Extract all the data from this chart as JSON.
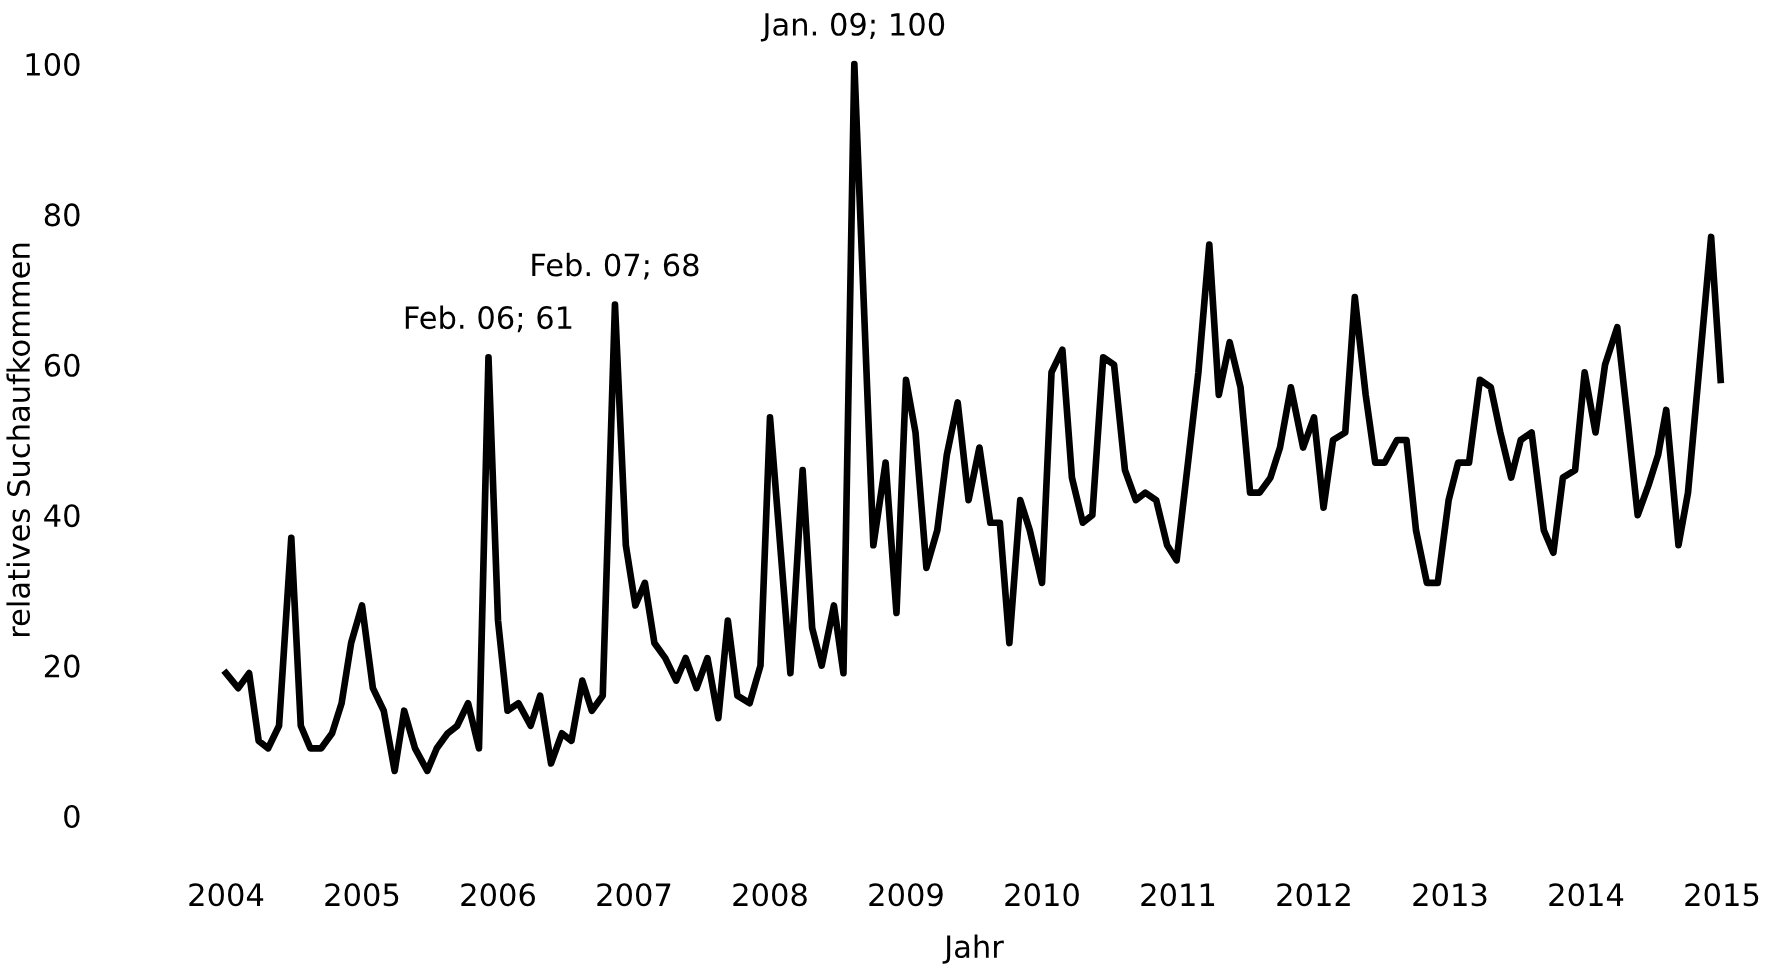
{
  "chart_data": {
    "type": "line",
    "xlabel": "Jahr",
    "ylabel": "relatives Suchaufkommen",
    "xlim": [
      2004,
      2015
    ],
    "xticks": [
      2004,
      2005,
      2006,
      2007,
      2008,
      2009,
      2010,
      2011,
      2012,
      2013,
      2014,
      2015
    ],
    "ylim": [
      0,
      100
    ],
    "yticks": [
      0,
      20,
      40,
      60,
      80,
      100
    ],
    "series": [
      {
        "color": "#000000",
        "x": [
          2004.0,
          2004.09,
          2004.17,
          2004.24,
          2004.31,
          2004.39,
          2004.48,
          2004.55,
          2004.62,
          2004.7,
          2004.78,
          2004.85,
          2004.92,
          2005.0,
          2005.08,
          2005.16,
          2005.24,
          2005.31,
          2005.39,
          2005.48,
          2005.55,
          2005.63,
          2005.7,
          2005.78,
          2005.86,
          2005.93,
          2006.0,
          2006.07,
          2006.15,
          2006.24,
          2006.31,
          2006.39,
          2006.47,
          2006.54,
          2006.62,
          2006.69,
          2006.77,
          2006.86,
          2006.94,
          2007.01,
          2007.08,
          2007.15,
          2007.23,
          2007.31,
          2007.38,
          2007.46,
          2007.54,
          2007.62,
          2007.69,
          2007.76,
          2007.85,
          2007.93,
          2008.0,
          2008.15,
          2008.24,
          2008.31,
          2008.38,
          2008.47,
          2008.54,
          2008.62,
          2008.76,
          2008.85,
          2008.93,
          2009.0,
          2009.07,
          2009.15,
          2009.23,
          2009.3,
          2009.38,
          2009.46,
          2009.54,
          2009.62,
          2009.69,
          2009.76,
          2009.84,
          2009.91,
          2010.0,
          2010.07,
          2010.15,
          2010.22,
          2010.3,
          2010.37,
          2010.45,
          2010.53,
          2010.61,
          2010.69,
          2010.76,
          2010.84,
          2010.92,
          2010.99,
          2011.08,
          2011.15,
          2011.23,
          2011.3,
          2011.38,
          2011.46,
          2011.53,
          2011.6,
          2011.68,
          2011.75,
          2011.83,
          2011.92,
          2012.0,
          2012.07,
          2012.14,
          2012.23,
          2012.3,
          2012.38,
          2012.45,
          2012.52,
          2012.61,
          2012.68,
          2012.75,
          2012.83,
          2012.91,
          2012.99,
          2013.06,
          2013.14,
          2013.22,
          2013.3,
          2013.37,
          2013.45,
          2013.52,
          2013.6,
          2013.69,
          2013.76,
          2013.83,
          2013.92,
          2013.99,
          2014.07,
          2014.14,
          2014.23,
          2014.31,
          2014.38,
          2014.46,
          2014.53,
          2014.59,
          2014.68,
          2014.75,
          2014.92,
          2014.99
        ],
        "values": [
          19,
          17,
          19,
          10,
          9,
          12,
          37,
          12,
          9,
          9,
          11,
          15,
          23,
          28,
          17,
          14,
          6,
          14,
          9,
          6,
          9,
          11,
          12,
          15,
          9,
          61,
          26,
          14,
          15,
          12,
          16,
          7,
          11,
          10,
          18,
          14,
          16,
          68,
          36,
          28,
          31,
          23,
          21,
          18,
          21,
          17,
          21,
          13,
          26,
          16,
          15,
          20,
          53,
          19,
          46,
          25,
          20,
          28,
          19,
          100,
          36,
          47,
          27,
          58,
          51,
          33,
          38,
          48,
          55,
          42,
          49,
          39,
          39,
          23,
          42,
          38,
          31,
          59,
          62,
          45,
          39,
          40,
          61,
          60,
          46,
          42,
          43,
          42,
          36,
          34,
          48,
          59,
          76,
          56,
          63,
          57,
          43,
          43,
          45,
          49,
          57,
          49,
          53,
          41,
          50,
          51,
          69,
          56,
          47,
          47,
          50,
          50,
          38,
          31,
          31,
          42,
          47,
          47,
          58,
          57,
          51,
          45,
          50,
          51,
          38,
          35,
          45,
          46,
          59,
          51,
          60,
          65,
          52,
          40,
          44,
          48,
          54,
          36,
          43,
          77,
          58
        ]
      }
    ],
    "annotations": [
      {
        "text": "Feb. 06; 61",
        "x": 2005.93,
        "y": 61
      },
      {
        "text": "Feb. 07; 68",
        "x": 2006.86,
        "y": 68
      },
      {
        "text": "Jan. 09; 100",
        "x": 2008.62,
        "y": 100
      }
    ],
    "line_style": "solid",
    "marker": "none",
    "grid": false,
    "legend": false
  }
}
